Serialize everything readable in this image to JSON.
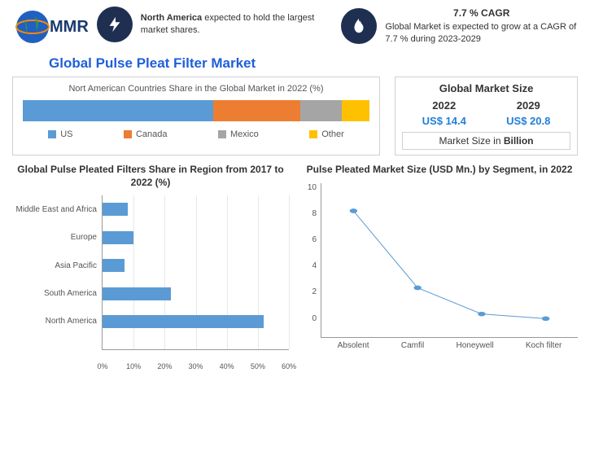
{
  "logo_text": "MMR",
  "highlight1": {
    "bold": "North America",
    "rest": " expected to hold the largest market shares."
  },
  "highlight2": {
    "cagr": "7.7 % CAGR",
    "text": "Global Market is expected to grow at a CAGR of 7.7 % during 2023-2029"
  },
  "main_title": "Global Pulse Pleat Filter Market",
  "share_chart": {
    "title": "Nort American Countries Share in the Global Market in 2022 (%)",
    "segments": [
      {
        "label": "US",
        "value": 55,
        "color": "#5b9bd5"
      },
      {
        "label": "Canada",
        "value": 25,
        "color": "#ed7d31"
      },
      {
        "label": "Mexico",
        "value": 12,
        "color": "#a5a5a5"
      },
      {
        "label": "Other",
        "value": 8,
        "color": "#ffc000"
      }
    ]
  },
  "market_size": {
    "title": "Global Market Size",
    "y2022_label": "2022",
    "y2029_label": "2029",
    "y2022_val": "US$ 14.4",
    "y2029_val": "US$ 20.8",
    "unit_prefix": "Market Size in ",
    "unit_bold": "Billion",
    "val_color": "#1f7fd9"
  },
  "region_chart": {
    "title": "Global Pulse Pleated Filters Share in Region from 2017 to 2022 (%)",
    "xmax": 60,
    "xtick_step": 10,
    "bar_color": "#5b9bd5",
    "grid_color": "#e8e8e8",
    "categories": [
      {
        "label": "Middle East and Africa",
        "value": 8
      },
      {
        "label": "Europe",
        "value": 10
      },
      {
        "label": "Asia Pacific",
        "value": 7
      },
      {
        "label": "South America",
        "value": 22
      },
      {
        "label": "North America",
        "value": 52
      }
    ]
  },
  "segment_chart": {
    "title": "Pulse Pleated  Market Size (USD Mn.) by Segment, in 2022",
    "ymax": 10,
    "ytick_step": 2,
    "line_color": "#5b9bd5",
    "marker_color": "#5b9bd5",
    "points": [
      {
        "label": "Absolent",
        "value": 8.2
      },
      {
        "label": "Camfil",
        "value": 3.2
      },
      {
        "label": "Honeywell",
        "value": 1.5
      },
      {
        "label": "Koch filter",
        "value": 1.2
      }
    ]
  }
}
